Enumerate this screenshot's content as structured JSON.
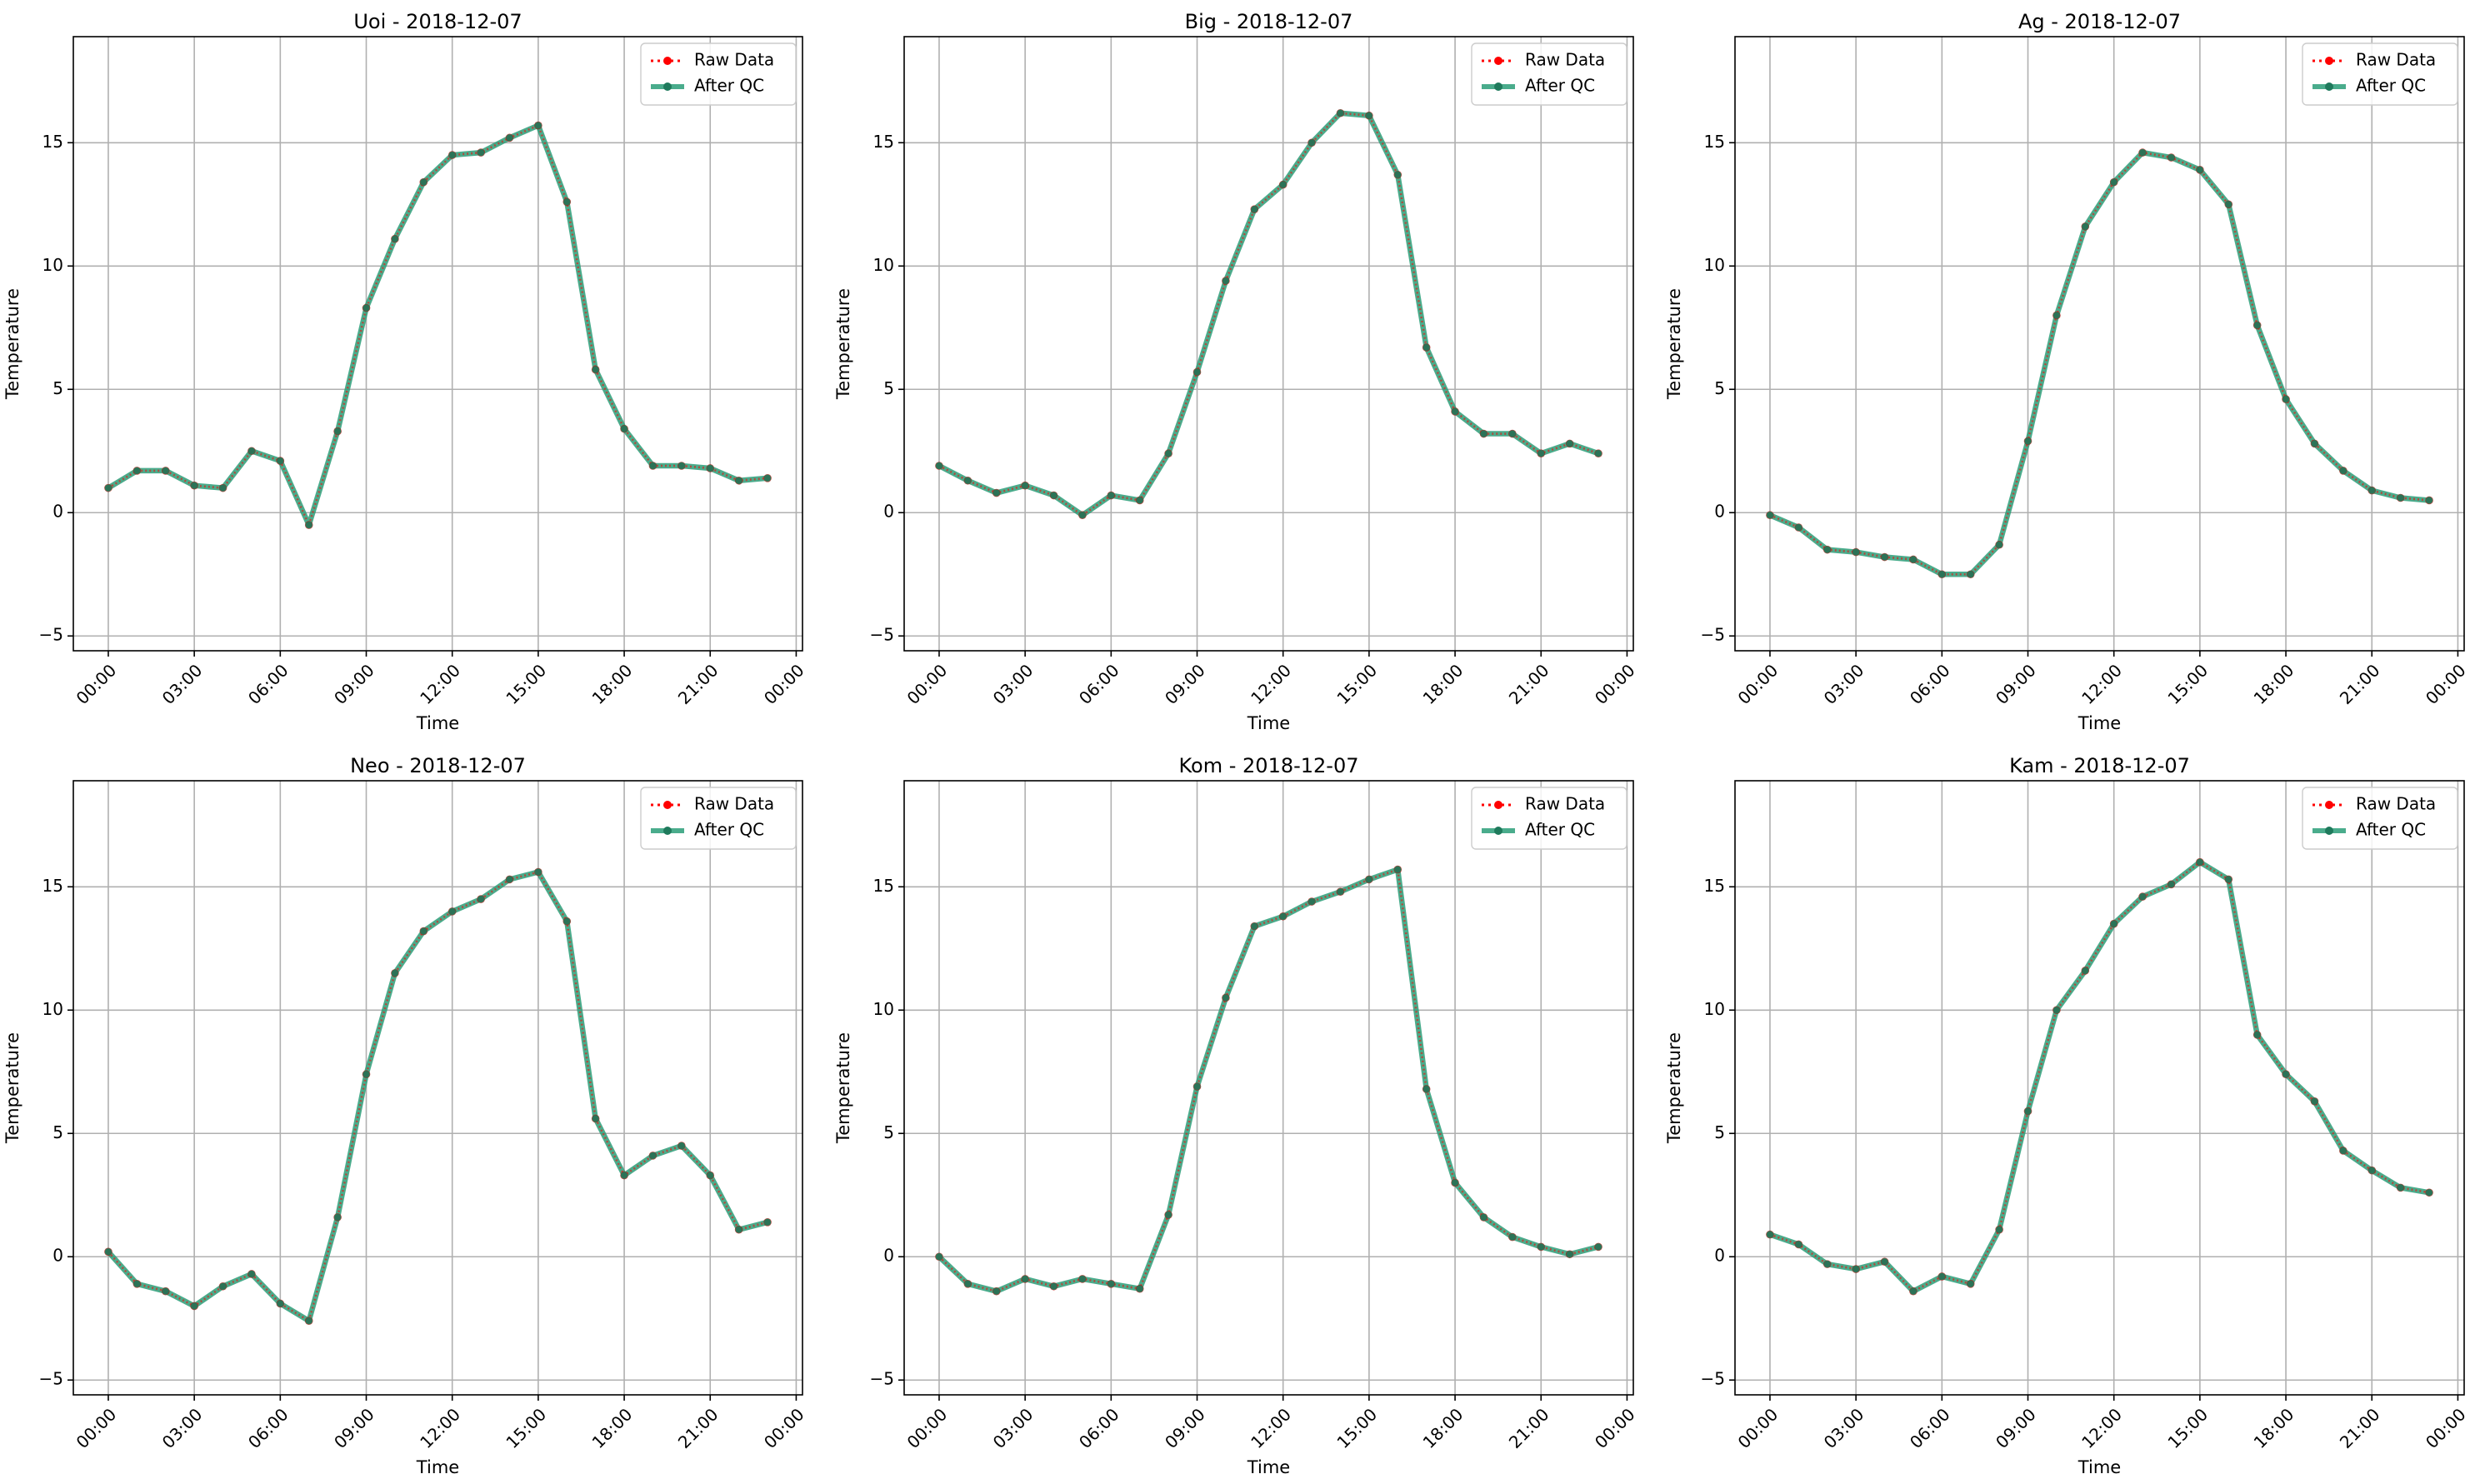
{
  "chart_data": [
    {
      "type": "line",
      "title": "Uoi - 2018-12-07",
      "xlabel": "Time",
      "ylabel": "Temperature",
      "x": [
        "00:00",
        "01:00",
        "02:00",
        "03:00",
        "04:00",
        "05:00",
        "06:00",
        "07:00",
        "08:00",
        "09:00",
        "10:00",
        "11:00",
        "12:00",
        "13:00",
        "14:00",
        "15:00",
        "16:00",
        "17:00",
        "18:00",
        "19:00",
        "20:00",
        "21:00",
        "22:00",
        "23:00"
      ],
      "xticks": [
        "00:00",
        "03:00",
        "06:00",
        "09:00",
        "12:00",
        "15:00",
        "18:00",
        "21:00",
        "00:00"
      ],
      "yticks": [
        "−5",
        "0",
        "5",
        "10",
        "15"
      ],
      "ylim": [
        -5.6,
        19.3
      ],
      "grid": true,
      "legend_position": "top-right",
      "series": [
        {
          "name": "Raw Data",
          "color": "#ff0000",
          "style": "dotted",
          "values": [
            1.0,
            1.7,
            1.7,
            1.1,
            1.0,
            2.5,
            2.1,
            -0.5,
            3.3,
            8.3,
            11.1,
            13.4,
            14.5,
            14.6,
            15.2,
            15.7,
            12.6,
            5.8,
            3.4,
            1.9,
            1.9,
            1.8,
            1.3,
            1.4
          ]
        },
        {
          "name": "After QC",
          "color": "#2a9d78",
          "style": "solid",
          "values": [
            1.0,
            1.7,
            1.7,
            1.1,
            1.0,
            2.5,
            2.1,
            -0.5,
            3.3,
            8.3,
            11.1,
            13.4,
            14.5,
            14.6,
            15.2,
            15.7,
            12.6,
            5.8,
            3.4,
            1.9,
            1.9,
            1.8,
            1.3,
            1.4
          ]
        }
      ]
    },
    {
      "type": "line",
      "title": "Big - 2018-12-07",
      "xlabel": "Time",
      "ylabel": "Temperature",
      "x": [
        "00:00",
        "01:00",
        "02:00",
        "03:00",
        "04:00",
        "05:00",
        "06:00",
        "07:00",
        "08:00",
        "09:00",
        "10:00",
        "11:00",
        "12:00",
        "13:00",
        "14:00",
        "15:00",
        "16:00",
        "17:00",
        "18:00",
        "19:00",
        "20:00",
        "21:00",
        "22:00",
        "23:00"
      ],
      "xticks": [
        "00:00",
        "03:00",
        "06:00",
        "09:00",
        "12:00",
        "15:00",
        "18:00",
        "21:00",
        "00:00"
      ],
      "yticks": [
        "−5",
        "0",
        "5",
        "10",
        "15"
      ],
      "ylim": [
        -5.6,
        19.3
      ],
      "grid": true,
      "legend_position": "top-right",
      "series": [
        {
          "name": "Raw Data",
          "color": "#ff0000",
          "style": "dotted",
          "values": [
            1.9,
            1.3,
            0.8,
            1.1,
            0.7,
            -0.1,
            0.7,
            0.5,
            2.4,
            5.7,
            9.4,
            12.3,
            13.3,
            15.0,
            16.2,
            16.1,
            13.7,
            6.7,
            4.1,
            3.2,
            3.2,
            2.4,
            2.8,
            2.4
          ]
        },
        {
          "name": "After QC",
          "color": "#2a9d78",
          "style": "solid",
          "values": [
            1.9,
            1.3,
            0.8,
            1.1,
            0.7,
            -0.1,
            0.7,
            0.5,
            2.4,
            5.7,
            9.4,
            12.3,
            13.3,
            15.0,
            16.2,
            16.1,
            13.7,
            6.7,
            4.1,
            3.2,
            3.2,
            2.4,
            2.8,
            2.4
          ]
        }
      ]
    },
    {
      "type": "line",
      "title": "Ag - 2018-12-07",
      "xlabel": "Time",
      "ylabel": "Temperature",
      "x": [
        "00:00",
        "01:00",
        "02:00",
        "03:00",
        "04:00",
        "05:00",
        "06:00",
        "07:00",
        "08:00",
        "09:00",
        "10:00",
        "11:00",
        "12:00",
        "13:00",
        "14:00",
        "15:00",
        "16:00",
        "17:00",
        "18:00",
        "19:00",
        "20:00",
        "21:00",
        "22:00",
        "23:00"
      ],
      "xticks": [
        "00:00",
        "03:00",
        "06:00",
        "09:00",
        "12:00",
        "15:00",
        "18:00",
        "21:00",
        "00:00"
      ],
      "yticks": [
        "−5",
        "0",
        "5",
        "10",
        "15"
      ],
      "ylim": [
        -5.6,
        19.3
      ],
      "grid": true,
      "legend_position": "top-right",
      "series": [
        {
          "name": "Raw Data",
          "color": "#ff0000",
          "style": "dotted",
          "values": [
            -0.1,
            -0.6,
            -1.5,
            -1.6,
            -1.8,
            -1.9,
            -2.5,
            -2.5,
            -1.3,
            2.9,
            8.0,
            11.6,
            13.4,
            14.6,
            14.4,
            13.9,
            12.5,
            7.6,
            4.6,
            2.8,
            1.7,
            0.9,
            0.6,
            0.5
          ]
        },
        {
          "name": "After QC",
          "color": "#2a9d78",
          "style": "solid",
          "values": [
            -0.1,
            -0.6,
            -1.5,
            -1.6,
            -1.8,
            -1.9,
            -2.5,
            -2.5,
            -1.3,
            2.9,
            8.0,
            11.6,
            13.4,
            14.6,
            14.4,
            13.9,
            12.5,
            7.6,
            4.6,
            2.8,
            1.7,
            0.9,
            0.6,
            0.5
          ]
        }
      ]
    },
    {
      "type": "line",
      "title": "Neo - 2018-12-07",
      "xlabel": "Time",
      "ylabel": "Temperature",
      "x": [
        "00:00",
        "01:00",
        "02:00",
        "03:00",
        "04:00",
        "05:00",
        "06:00",
        "07:00",
        "08:00",
        "09:00",
        "10:00",
        "11:00",
        "12:00",
        "13:00",
        "14:00",
        "15:00",
        "16:00",
        "17:00",
        "18:00",
        "19:00",
        "20:00",
        "21:00",
        "22:00",
        "23:00"
      ],
      "xticks": [
        "00:00",
        "03:00",
        "06:00",
        "09:00",
        "12:00",
        "15:00",
        "18:00",
        "21:00",
        "00:00"
      ],
      "yticks": [
        "−5",
        "0",
        "5",
        "10",
        "15"
      ],
      "ylim": [
        -5.6,
        19.3
      ],
      "grid": true,
      "legend_position": "top-right",
      "series": [
        {
          "name": "Raw Data",
          "color": "#ff0000",
          "style": "dotted",
          "values": [
            0.2,
            -1.1,
            -1.4,
            -2.0,
            -1.2,
            -0.7,
            -1.9,
            -2.6,
            1.6,
            7.4,
            11.5,
            13.2,
            14.0,
            14.5,
            15.3,
            15.6,
            13.6,
            5.6,
            3.3,
            4.1,
            4.5,
            3.3,
            1.1,
            1.4
          ]
        },
        {
          "name": "After QC",
          "color": "#2a9d78",
          "style": "solid",
          "values": [
            0.2,
            -1.1,
            -1.4,
            -2.0,
            -1.2,
            -0.7,
            -1.9,
            -2.6,
            1.6,
            7.4,
            11.5,
            13.2,
            14.0,
            14.5,
            15.3,
            15.6,
            13.6,
            5.6,
            3.3,
            4.1,
            4.5,
            3.3,
            1.1,
            1.4
          ]
        }
      ]
    },
    {
      "type": "line",
      "title": "Kom - 2018-12-07",
      "xlabel": "Time",
      "ylabel": "Temperature",
      "x": [
        "00:00",
        "01:00",
        "02:00",
        "03:00",
        "04:00",
        "05:00",
        "06:00",
        "07:00",
        "08:00",
        "09:00",
        "10:00",
        "11:00",
        "12:00",
        "13:00",
        "14:00",
        "15:00",
        "16:00",
        "17:00",
        "18:00",
        "19:00",
        "20:00",
        "21:00",
        "22:00",
        "23:00"
      ],
      "xticks": [
        "00:00",
        "03:00",
        "06:00",
        "09:00",
        "12:00",
        "15:00",
        "18:00",
        "21:00",
        "00:00"
      ],
      "yticks": [
        "−5",
        "0",
        "5",
        "10",
        "15"
      ],
      "ylim": [
        -5.6,
        19.3
      ],
      "grid": true,
      "legend_position": "top-right",
      "series": [
        {
          "name": "Raw Data",
          "color": "#ff0000",
          "style": "dotted",
          "values": [
            0.0,
            -1.1,
            -1.4,
            -0.9,
            -1.2,
            -0.9,
            -1.1,
            -1.3,
            1.7,
            6.9,
            10.5,
            13.4,
            13.8,
            14.4,
            14.8,
            15.3,
            15.7,
            6.8,
            3.0,
            1.6,
            0.8,
            0.4,
            0.1,
            0.4
          ]
        },
        {
          "name": "After QC",
          "color": "#2a9d78",
          "style": "solid",
          "values": [
            0.0,
            -1.1,
            -1.4,
            -0.9,
            -1.2,
            -0.9,
            -1.1,
            -1.3,
            1.7,
            6.9,
            10.5,
            13.4,
            13.8,
            14.4,
            14.8,
            15.3,
            15.7,
            6.8,
            3.0,
            1.6,
            0.8,
            0.4,
            0.1,
            0.4
          ]
        }
      ]
    },
    {
      "type": "line",
      "title": "Kam - 2018-12-07",
      "xlabel": "Time",
      "ylabel": "Temperature",
      "x": [
        "00:00",
        "01:00",
        "02:00",
        "03:00",
        "04:00",
        "05:00",
        "06:00",
        "07:00",
        "08:00",
        "09:00",
        "10:00",
        "11:00",
        "12:00",
        "13:00",
        "14:00",
        "15:00",
        "16:00",
        "17:00",
        "18:00",
        "19:00",
        "20:00",
        "21:00",
        "22:00",
        "23:00"
      ],
      "xticks": [
        "00:00",
        "03:00",
        "06:00",
        "09:00",
        "12:00",
        "15:00",
        "18:00",
        "21:00",
        "00:00"
      ],
      "yticks": [
        "−5",
        "0",
        "5",
        "10",
        "15"
      ],
      "ylim": [
        -5.6,
        19.3
      ],
      "grid": true,
      "legend_position": "top-right",
      "series": [
        {
          "name": "Raw Data",
          "color": "#ff0000",
          "style": "dotted",
          "values": [
            0.9,
            0.5,
            -0.3,
            -0.5,
            -0.2,
            -1.4,
            -0.8,
            -1.1,
            1.1,
            5.9,
            10.0,
            11.6,
            13.5,
            14.6,
            15.1,
            16.0,
            15.3,
            9.0,
            7.4,
            6.3,
            4.3,
            3.5,
            2.8,
            2.6
          ]
        },
        {
          "name": "After QC",
          "color": "#2a9d78",
          "style": "solid",
          "values": [
            0.9,
            0.5,
            -0.3,
            -0.5,
            -0.2,
            -1.4,
            -0.8,
            -1.1,
            1.1,
            5.9,
            10.0,
            11.6,
            13.5,
            14.6,
            15.1,
            16.0,
            15.3,
            9.0,
            7.4,
            6.3,
            4.3,
            3.5,
            2.8,
            2.6
          ]
        }
      ]
    }
  ]
}
